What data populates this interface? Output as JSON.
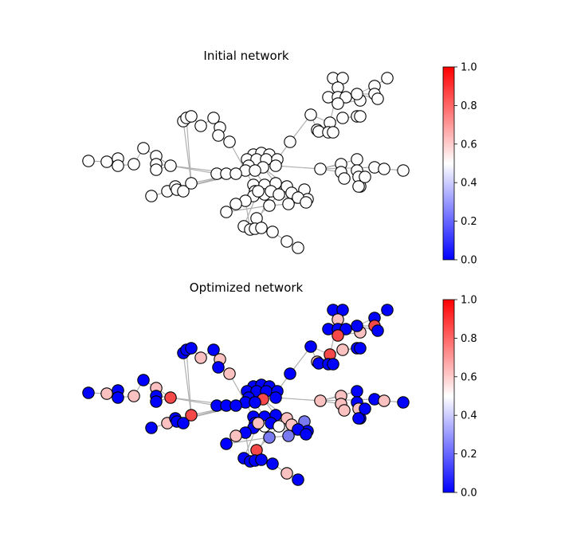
{
  "panels": [
    {
      "title": "Initial network",
      "mode": "initial"
    },
    {
      "title": "Optimized network",
      "mode": "optimized"
    }
  ],
  "colorbar": {
    "colormap": "bwr",
    "range": [
      0.0,
      1.0
    ],
    "ticks": [
      "0.0",
      "0.2",
      "0.4",
      "0.6",
      "0.8",
      "1.0"
    ]
  },
  "colors": {
    "low": "#0000ff",
    "mid": "#ffffff",
    "high": "#ff0000",
    "edge": "#b0b0b0"
  }
}
